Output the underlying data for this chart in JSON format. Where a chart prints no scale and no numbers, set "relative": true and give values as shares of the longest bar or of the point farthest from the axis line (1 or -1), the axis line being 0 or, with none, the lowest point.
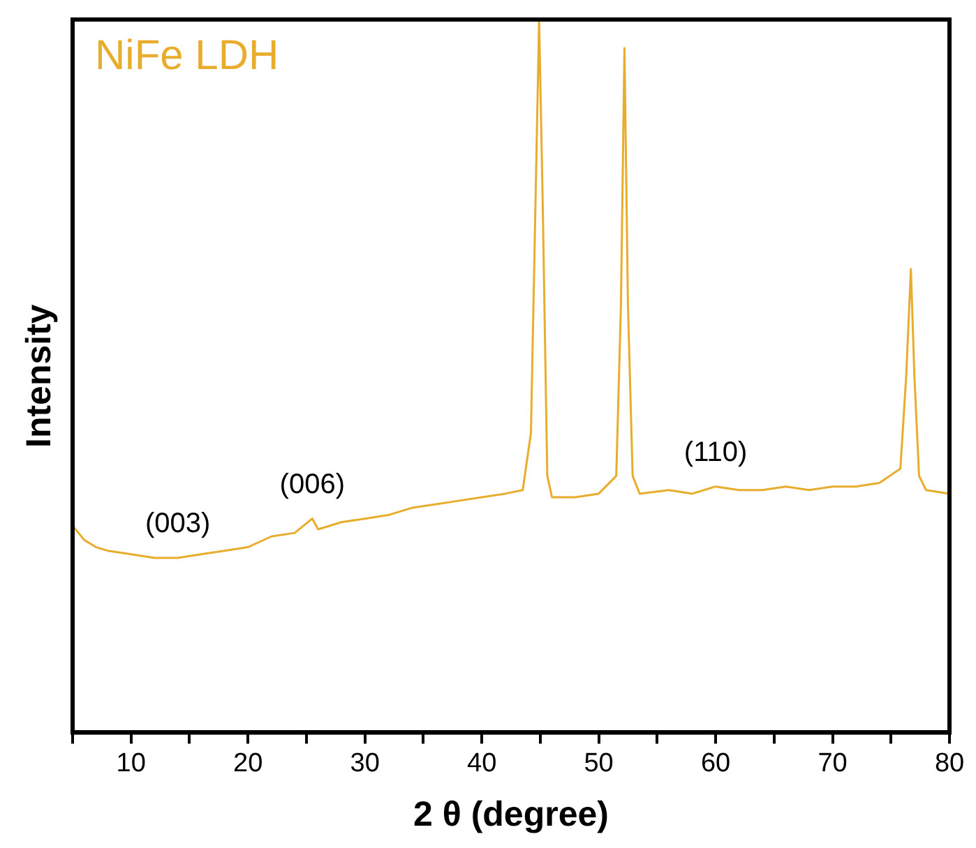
{
  "chart_data": {
    "type": "line",
    "relative": true,
    "xlabel": "2 θ (degree)",
    "ylabel": "Intensity",
    "legend": "top left",
    "grid": false,
    "marker": "none",
    "line_style": "solid",
    "xlim": [
      5,
      80
    ],
    "xticks": [
      {
        "value": 5,
        "label": null
      },
      10,
      {
        "value": 15,
        "label": null
      },
      20,
      {
        "value": 25,
        "label": null
      },
      30,
      {
        "value": 35,
        "label": null
      },
      40,
      {
        "value": 45,
        "label": null
      },
      50,
      {
        "value": 55,
        "label": null
      },
      60,
      {
        "value": 65,
        "label": null
      },
      70,
      {
        "value": 75,
        "label": null
      },
      80
    ],
    "annotations": [
      {
        "text": "(003)",
        "x": 14,
        "y": 0.245
      },
      {
        "text": "(006)",
        "x": 25.5,
        "y": 0.3
      },
      {
        "text": "(110)",
        "x": 60,
        "y": 0.345
      }
    ],
    "series": [
      {
        "name": "NiFe LDH",
        "color": "#e8ad2d",
        "x": [
          5,
          6,
          7,
          8,
          10,
          12,
          14,
          16,
          18,
          20,
          22,
          24,
          25.5,
          26,
          28,
          30,
          32,
          34,
          36,
          38,
          40,
          42,
          43.5,
          44.2,
          44.6,
          44.9,
          45.2,
          45.6,
          46,
          48,
          50,
          51.5,
          51.9,
          52.2,
          52.5,
          52.9,
          53.5,
          56,
          58,
          60,
          62,
          64,
          66,
          68,
          70,
          72,
          74,
          75.8,
          76.3,
          76.7,
          77,
          77.4,
          78,
          80
        ],
        "values": [
          0.29,
          0.27,
          0.26,
          0.255,
          0.25,
          0.245,
          0.245,
          0.25,
          0.255,
          0.26,
          0.275,
          0.28,
          0.3,
          0.285,
          0.295,
          0.3,
          0.305,
          0.315,
          0.32,
          0.325,
          0.33,
          0.335,
          0.34,
          0.42,
          0.75,
          1,
          0.75,
          0.36,
          0.33,
          0.33,
          0.335,
          0.36,
          0.6,
          0.96,
          0.6,
          0.36,
          0.335,
          0.34,
          0.335,
          0.345,
          0.34,
          0.34,
          0.345,
          0.34,
          0.345,
          0.345,
          0.35,
          0.37,
          0.5,
          0.65,
          0.5,
          0.36,
          0.34,
          0.335
        ]
      }
    ]
  }
}
